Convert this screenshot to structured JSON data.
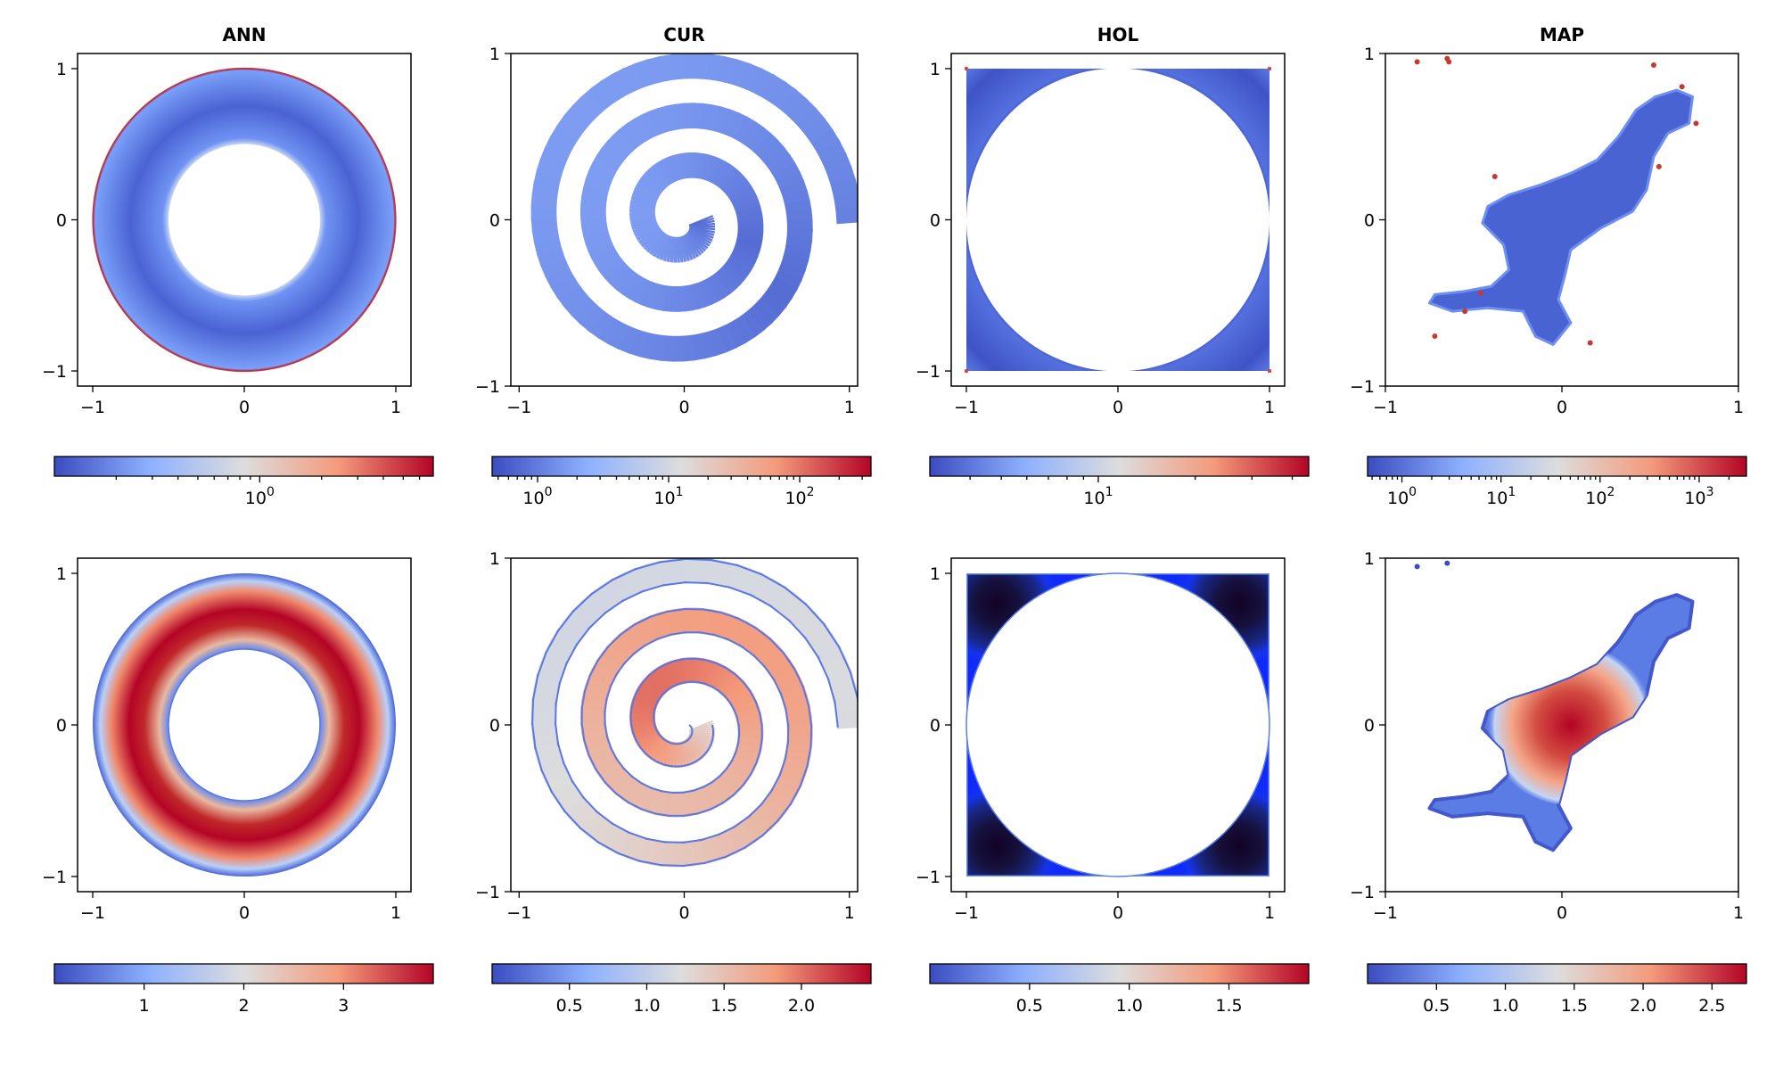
{
  "figure": {
    "type": "field-visualization-grid",
    "rows": 2,
    "cols": 4
  },
  "colormap": {
    "name": "coolwarm",
    "stops": [
      "#3b4cc0",
      "#8db0fe",
      "#dddddd",
      "#f49a7b",
      "#b40426"
    ]
  },
  "chart_data": [
    {
      "type": "heatmap",
      "title": "ANN",
      "row": 0,
      "col": 0,
      "shape": "annulus",
      "field": "error_log",
      "xlim": [
        -1.1,
        1.1
      ],
      "ylim": [
        -1.1,
        1.1
      ],
      "xticks": [
        {
          "value": -1,
          "label": "−1"
        },
        {
          "value": 0,
          "label": "0"
        },
        {
          "value": 1,
          "label": "1"
        }
      ],
      "yticks": [
        {
          "value": -1,
          "label": "−1"
        },
        {
          "value": 0,
          "label": "0"
        },
        {
          "value": 1,
          "label": "1"
        }
      ],
      "colorbar": {
        "scale": "log",
        "range": [
          0.1,
          7.0
        ],
        "ticks": [
          {
            "value": 1,
            "base": "10",
            "exp": "0"
          }
        ]
      }
    },
    {
      "type": "heatmap",
      "title": "CUR",
      "row": 0,
      "col": 1,
      "shape": "spiral",
      "field": "error_log",
      "xlim": [
        -1.05,
        1.05
      ],
      "ylim": [
        -1.0,
        1.0
      ],
      "xticks": [
        {
          "value": -1,
          "label": "−1"
        },
        {
          "value": 0,
          "label": "0"
        },
        {
          "value": 1,
          "label": "1"
        }
      ],
      "yticks": [
        {
          "value": -1,
          "label": "−1"
        },
        {
          "value": 0,
          "label": "0"
        },
        {
          "value": 1,
          "label": "1"
        }
      ],
      "colorbar": {
        "scale": "log",
        "range": [
          0.45,
          350
        ],
        "ticks": [
          {
            "value": 1,
            "base": "10",
            "exp": "0"
          },
          {
            "value": 10,
            "base": "10",
            "exp": "1"
          },
          {
            "value": 100,
            "base": "10",
            "exp": "2"
          }
        ]
      }
    },
    {
      "type": "heatmap",
      "title": "HOL",
      "row": 0,
      "col": 2,
      "shape": "square-hole",
      "field": "error_log",
      "xlim": [
        -1.1,
        1.1
      ],
      "ylim": [
        -1.1,
        1.1
      ],
      "xticks": [
        {
          "value": -1,
          "label": "−1"
        },
        {
          "value": 0,
          "label": "0"
        },
        {
          "value": 1,
          "label": "1"
        }
      ],
      "yticks": [
        {
          "value": -1,
          "label": "−1"
        },
        {
          "value": 0,
          "label": "0"
        },
        {
          "value": 1,
          "label": "1"
        }
      ],
      "colorbar": {
        "scale": "log",
        "range": [
          3,
          45
        ],
        "ticks": [
          {
            "value": 10,
            "base": "10",
            "exp": "1"
          }
        ]
      }
    },
    {
      "type": "heatmap",
      "title": "MAP",
      "row": 0,
      "col": 3,
      "shape": "map",
      "field": "error_log",
      "xlim": [
        -1,
        1
      ],
      "ylim": [
        -1,
        1
      ],
      "xticks": [
        {
          "value": -1,
          "label": "−1"
        },
        {
          "value": 0,
          "label": "0"
        },
        {
          "value": 1,
          "label": "1"
        }
      ],
      "yticks": [
        {
          "value": -1,
          "label": "−1"
        },
        {
          "value": 0,
          "label": "0"
        },
        {
          "value": 1,
          "label": "1"
        }
      ],
      "colorbar": {
        "scale": "log",
        "range": [
          0.45,
          3000
        ],
        "ticks": [
          {
            "value": 1,
            "base": "10",
            "exp": "0"
          },
          {
            "value": 10,
            "base": "10",
            "exp": "1"
          },
          {
            "value": 100,
            "base": "10",
            "exp": "2"
          },
          {
            "value": 1000,
            "base": "10",
            "exp": "3"
          }
        ]
      }
    },
    {
      "type": "heatmap",
      "title": "",
      "row": 1,
      "col": 0,
      "shape": "annulus",
      "field": "solution",
      "xlim": [
        -1.1,
        1.1
      ],
      "ylim": [
        -1.1,
        1.1
      ],
      "xticks": [
        {
          "value": -1,
          "label": "−1"
        },
        {
          "value": 0,
          "label": "0"
        },
        {
          "value": 1,
          "label": "1"
        }
      ],
      "yticks": [
        {
          "value": -1,
          "label": "−1"
        },
        {
          "value": 0,
          "label": "0"
        },
        {
          "value": 1,
          "label": "1"
        }
      ],
      "colorbar": {
        "scale": "linear",
        "range": [
          0.1,
          3.9
        ],
        "ticks": [
          {
            "value": 1,
            "label": "1"
          },
          {
            "value": 2,
            "label": "2"
          },
          {
            "value": 3,
            "label": "3"
          }
        ]
      }
    },
    {
      "type": "heatmap",
      "title": "",
      "row": 1,
      "col": 1,
      "shape": "spiral",
      "field": "solution",
      "xlim": [
        -1.05,
        1.05
      ],
      "ylim": [
        -1.0,
        1.0
      ],
      "xticks": [
        {
          "value": -1,
          "label": "−1"
        },
        {
          "value": 0,
          "label": "0"
        },
        {
          "value": 1,
          "label": "1"
        }
      ],
      "yticks": [
        {
          "value": -1,
          "label": "−1"
        },
        {
          "value": 0,
          "label": "0"
        },
        {
          "value": 1,
          "label": "1"
        }
      ],
      "colorbar": {
        "scale": "linear",
        "range": [
          0.0,
          2.45
        ],
        "ticks": [
          {
            "value": 0.5,
            "label": "0.5"
          },
          {
            "value": 1.0,
            "label": "1.0"
          },
          {
            "value": 1.5,
            "label": "1.5"
          },
          {
            "value": 2.0,
            "label": "2.0"
          }
        ]
      }
    },
    {
      "type": "heatmap",
      "title": "",
      "row": 1,
      "col": 2,
      "shape": "square-hole",
      "field": "solution",
      "xlim": [
        -1.1,
        1.1
      ],
      "ylim": [
        -1.1,
        1.1
      ],
      "xticks": [
        {
          "value": -1,
          "label": "−1"
        },
        {
          "value": 0,
          "label": "0"
        },
        {
          "value": 1,
          "label": "1"
        }
      ],
      "yticks": [
        {
          "value": -1,
          "label": "−1"
        },
        {
          "value": 0,
          "label": "0"
        },
        {
          "value": 1,
          "label": "1"
        }
      ],
      "colorbar": {
        "scale": "linear",
        "range": [
          0.0,
          1.9
        ],
        "ticks": [
          {
            "value": 0.5,
            "label": "0.5"
          },
          {
            "value": 1.0,
            "label": "1.0"
          },
          {
            "value": 1.5,
            "label": "1.5"
          }
        ]
      }
    },
    {
      "type": "heatmap",
      "title": "",
      "row": 1,
      "col": 3,
      "shape": "map",
      "field": "solution",
      "xlim": [
        -1,
        1
      ],
      "ylim": [
        -1,
        1
      ],
      "xticks": [
        {
          "value": -1,
          "label": "−1"
        },
        {
          "value": 0,
          "label": "0"
        },
        {
          "value": 1,
          "label": "1"
        }
      ],
      "yticks": [
        {
          "value": -1,
          "label": "−1"
        },
        {
          "value": 0,
          "label": "0"
        },
        {
          "value": 1,
          "label": "1"
        }
      ],
      "colorbar": {
        "scale": "linear",
        "range": [
          0.0,
          2.75
        ],
        "ticks": [
          {
            "value": 0.5,
            "label": "0.5"
          },
          {
            "value": 1.0,
            "label": "1.0"
          },
          {
            "value": 1.5,
            "label": "1.5"
          },
          {
            "value": 2.0,
            "label": "2.0"
          },
          {
            "value": 2.5,
            "label": "2.5"
          }
        ]
      }
    }
  ]
}
